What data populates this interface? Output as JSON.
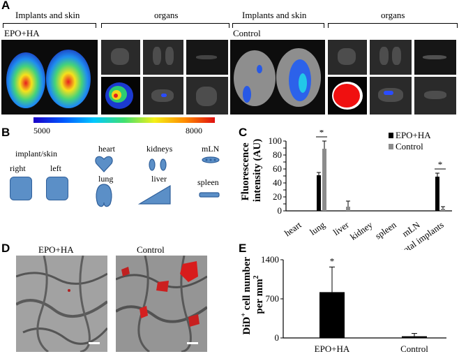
{
  "panel_a": {
    "label": "A",
    "headers": [
      "Implants and skin",
      "organs",
      "Implants and skin",
      "organs"
    ],
    "group_labels": [
      "EPO+HA",
      "Control"
    ],
    "colorbar": {
      "min_label": "5000",
      "max_label": "8000"
    }
  },
  "panel_b": {
    "label": "B",
    "implant_title": "implant/skin",
    "right": "right",
    "left": "left",
    "organs": [
      "heart",
      "kidneys",
      "mLN",
      "lung",
      "liver",
      "spleen"
    ]
  },
  "panel_c": {
    "label": "C",
    "ylabel_line1": "Fluorescence",
    "ylabel_line2": "intensity (AU)",
    "significance": "*",
    "legend": [
      "EPO+HA",
      "Control"
    ]
  },
  "panel_d": {
    "label": "D",
    "titles": [
      "EPO+HA",
      "Control"
    ]
  },
  "panel_e": {
    "label": "E",
    "ylabel_line1": "DiD",
    "ylabel_sup": "+",
    "ylabel_rest": " cell number",
    "ylabel_line2": "per mm",
    "ylabel_sup2": "2",
    "significance": "*"
  },
  "colors": {
    "epo_ha": "#000000",
    "control": "#8c8c8c",
    "organ_shape": "#5b8fc7"
  },
  "chart_data": [
    {
      "type": "bar",
      "categories": [
        "heart",
        "lung",
        "liver",
        "kidney",
        "spleen",
        "mLN",
        "total implants"
      ],
      "series": [
        {
          "name": "EPO+HA",
          "values": [
            0,
            51,
            0,
            0,
            0,
            0,
            49
          ],
          "errors": [
            0,
            4,
            0,
            0,
            0,
            0,
            5
          ]
        },
        {
          "name": "Control",
          "values": [
            0,
            89,
            6,
            0,
            0,
            0,
            3
          ],
          "errors": [
            0,
            11,
            8,
            0,
            0,
            0,
            3
          ]
        }
      ],
      "ylabel": "Fluorescence intensity (AU)",
      "ylim": [
        0,
        100
      ],
      "yticks": [
        0,
        10,
        20,
        30,
        40,
        50,
        60,
        70,
        80,
        90,
        100
      ],
      "legend_position": "top-right"
    },
    {
      "type": "bar",
      "categories": [
        "EPO+HA",
        "Control"
      ],
      "values": [
        820,
        30
      ],
      "errors": [
        450,
        50
      ],
      "ylabel": "DiD+ cell number per mm2",
      "ylim": [
        0,
        1400
      ],
      "yticks": [
        0,
        700,
        1400
      ]
    }
  ]
}
